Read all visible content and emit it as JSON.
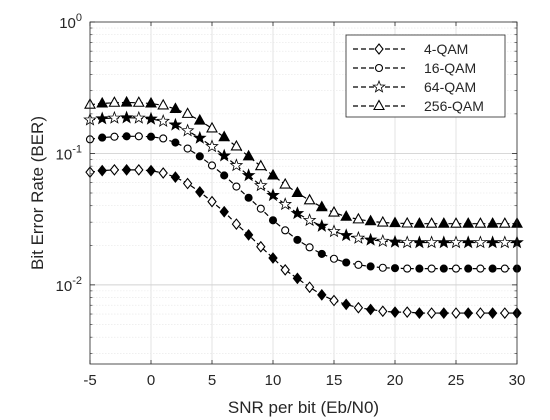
{
  "chart_data": {
    "type": "line",
    "xlabel": "SNR per bit (Eb/N0)",
    "ylabel": "Bit Error Rate (BER)",
    "xlim": [
      -5,
      30
    ],
    "ylim": [
      0.0025,
      1
    ],
    "yscale": "log",
    "grid": true,
    "minor_grid": true,
    "legend_position": "top-right",
    "x_ticks": [
      "-5",
      "0",
      "5",
      "10",
      "15",
      "20",
      "25",
      "30"
    ],
    "y_ticks": [
      {
        "base": "10",
        "exp": "0",
        "value": 1
      },
      {
        "base": "10",
        "exp": "-1",
        "value": 0.1
      },
      {
        "base": "10",
        "exp": "-2",
        "value": 0.01
      }
    ],
    "x": [
      -5,
      -4,
      -3,
      -2,
      -1,
      0,
      1,
      2,
      3,
      4,
      5,
      6,
      7,
      8,
      9,
      10,
      11,
      12,
      13,
      14,
      15,
      16,
      17,
      18,
      19,
      20,
      21,
      22,
      23,
      24,
      25,
      26,
      27,
      28,
      29,
      30
    ],
    "series": [
      {
        "name": "4-QAM",
        "marker": "diamond",
        "values": [
          0.072,
          0.074,
          0.075,
          0.075,
          0.075,
          0.074,
          0.071,
          0.066,
          0.059,
          0.051,
          0.043,
          0.036,
          0.029,
          0.024,
          0.0195,
          0.016,
          0.013,
          0.0112,
          0.0096,
          0.0084,
          0.0076,
          0.0071,
          0.0067,
          0.0065,
          0.0063,
          0.0062,
          0.0062,
          0.0061,
          0.0061,
          0.0061,
          0.0061,
          0.0061,
          0.0061,
          0.0061,
          0.0061,
          0.0061
        ]
      },
      {
        "name": "16-QAM",
        "marker": "circle",
        "values": [
          0.128,
          0.132,
          0.134,
          0.135,
          0.135,
          0.134,
          0.13,
          0.121,
          0.109,
          0.095,
          0.081,
          0.068,
          0.056,
          0.046,
          0.038,
          0.031,
          0.026,
          0.022,
          0.0193,
          0.0172,
          0.0158,
          0.0148,
          0.0142,
          0.0138,
          0.0135,
          0.0134,
          0.0133,
          0.0133,
          0.0133,
          0.0133,
          0.0133,
          0.0133,
          0.0133,
          0.0133,
          0.0133,
          0.0133
        ]
      },
      {
        "name": "64-QAM",
        "marker": "star",
        "values": [
          0.18,
          0.184,
          0.186,
          0.187,
          0.186,
          0.183,
          0.176,
          0.165,
          0.149,
          0.131,
          0.113,
          0.096,
          0.081,
          0.068,
          0.057,
          0.048,
          0.041,
          0.035,
          0.031,
          0.028,
          0.0255,
          0.0238,
          0.0227,
          0.022,
          0.0215,
          0.0212,
          0.021,
          0.021,
          0.021,
          0.021,
          0.021,
          0.021,
          0.021,
          0.021,
          0.021,
          0.021
        ]
      },
      {
        "name": "256-QAM",
        "marker": "triangle",
        "values": [
          0.235,
          0.24,
          0.243,
          0.244,
          0.243,
          0.24,
          0.232,
          0.218,
          0.2,
          0.178,
          0.155,
          0.133,
          0.113,
          0.095,
          0.08,
          0.068,
          0.058,
          0.05,
          0.044,
          0.039,
          0.0355,
          0.033,
          0.0315,
          0.0305,
          0.0298,
          0.0295,
          0.0293,
          0.0292,
          0.0292,
          0.0292,
          0.0292,
          0.0292,
          0.0292,
          0.0292,
          0.0292,
          0.0292
        ]
      }
    ]
  }
}
